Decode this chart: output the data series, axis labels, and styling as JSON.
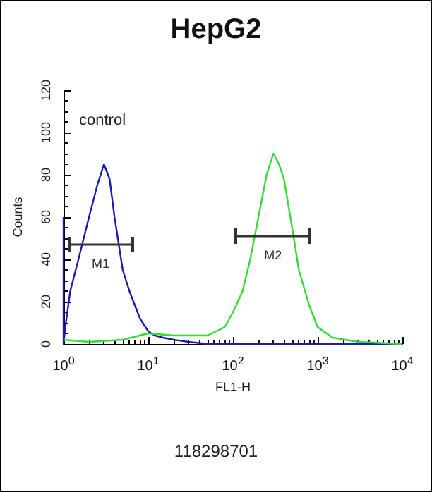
{
  "chart_data": {
    "type": "line",
    "title": "HepG2",
    "xlabel": "FL1-H",
    "ylabel": "Counts",
    "log": "x",
    "xlim": [
      1,
      10000
    ],
    "xticks": [
      {
        "value": 1,
        "label": "10$^{0}$"
      },
      {
        "value": 10,
        "label": "10$^{1}$"
      },
      {
        "value": 100,
        "label": "10$^{2}$"
      },
      {
        "value": 1000,
        "label": "10$^{3}$"
      },
      {
        "value": 10000,
        "label": "10$^{4}$"
      }
    ],
    "ylim": [
      0,
      120
    ],
    "yticks": [
      0,
      20,
      40,
      60,
      80,
      100,
      120
    ],
    "grid": false,
    "legend": false,
    "marker": "none",
    "line_style": "solid",
    "series": [
      {
        "color": "#1c1cb0",
        "x": [
          1,
          1,
          1.05,
          1.2,
          1.5,
          2,
          2.5,
          3,
          3.5,
          4,
          5,
          6,
          7,
          8,
          10,
          12,
          15,
          20,
          30,
          50,
          100,
          1000,
          10000
        ],
        "values": [
          60,
          0,
          8,
          25,
          40,
          60,
          75,
          85,
          78,
          60,
          35,
          25,
          18,
          12,
          6,
          4,
          3,
          2,
          1,
          0,
          0,
          0,
          0
        ]
      },
      {
        "color": "#33dd33",
        "x": [
          1,
          2,
          5,
          10,
          20,
          50,
          80,
          100,
          130,
          160,
          200,
          250,
          300,
          350,
          400,
          500,
          600,
          800,
          1000,
          1500,
          3000,
          10000
        ],
        "values": [
          2,
          1,
          2,
          5,
          4,
          4,
          8,
          15,
          25,
          40,
          60,
          80,
          90,
          85,
          78,
          55,
          35,
          18,
          8,
          3,
          1,
          0
        ]
      },
      {
        "type": "line",
        "name": "M1",
        "color": "#333333",
        "x": [
          1.15,
          6.5
        ],
        "values": [
          47,
          47
        ]
      },
      {
        "type": "line",
        "name": "M2",
        "color": "#333333",
        "x": [
          110,
          800
        ],
        "values": [
          51,
          51
        ]
      }
    ],
    "annotations": [
      "control",
      "118298701"
    ]
  }
}
